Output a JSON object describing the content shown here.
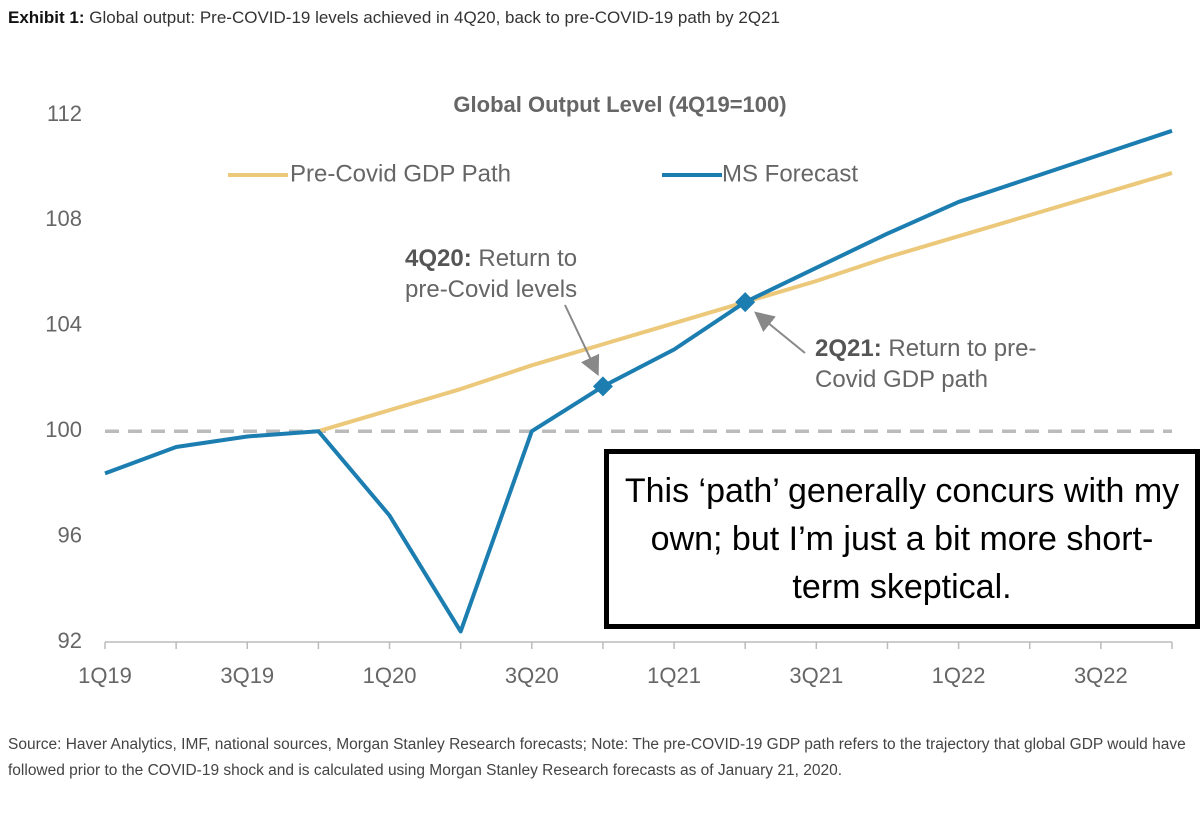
{
  "header": {
    "label": "Exhibit 1:",
    "text": "Global output: Pre-COVID-19 levels achieved in 4Q20, back to pre-COVID-19 path by 2Q21"
  },
  "chart_data": {
    "type": "line",
    "title": "Global Output Level (4Q19=100)",
    "categories": [
      "1Q19",
      null,
      "3Q19",
      null,
      "1Q20",
      null,
      "3Q20",
      null,
      "1Q21",
      null,
      "3Q21",
      null,
      "1Q22",
      null,
      "3Q22",
      null
    ],
    "series": [
      {
        "name": "Pre-Covid GDP Path",
        "color": "#ecc87a",
        "values": [
          null,
          null,
          null,
          100,
          100.8,
          101.6,
          102.5,
          103.3,
          104.1,
          104.9,
          105.7,
          106.6,
          107.4,
          108.2,
          109.0,
          109.8
        ]
      },
      {
        "name": "MS Forecast",
        "color": "#1b7db0",
        "values": [
          98.4,
          99.4,
          99.8,
          100,
          96.8,
          92.4,
          100,
          101.7,
          103.1,
          104.9,
          106.2,
          107.5,
          108.7,
          109.6,
          110.5,
          111.4
        ]
      }
    ],
    "ylim": [
      92,
      112
    ],
    "yticks": [
      92,
      96,
      100,
      104,
      108,
      112
    ],
    "reference_line": 100,
    "legend": "top",
    "annotations": [
      {
        "label": "4Q20:",
        "text": "Return to pre-Covid levels"
      },
      {
        "label": "2Q21:",
        "text": "Return to pre-Covid GDP path"
      }
    ]
  },
  "callout": "This ‘path’ generally concurs with my own; but I’m just a bit more short-term skeptical.",
  "source": "Source: Haver Analytics, IMF, national sources, Morgan Stanley Research forecasts; Note: The pre-COVID-19 GDP path refers to the trajectory that global GDP would have followed prior to the COVID-19 shock and is calculated using Morgan Stanley Research forecasts as of January 21, 2020."
}
